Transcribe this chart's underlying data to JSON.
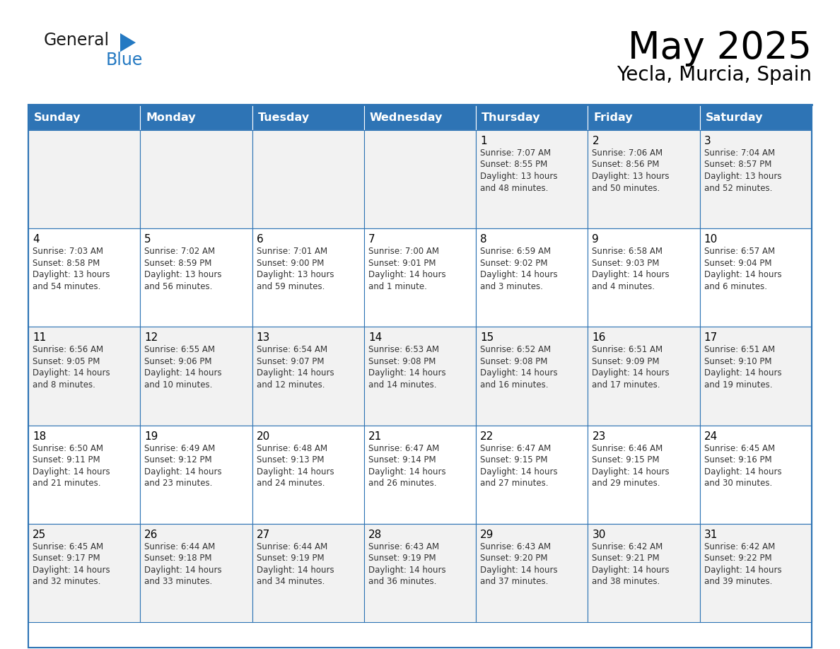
{
  "title": "May 2025",
  "subtitle": "Yecla, Murcia, Spain",
  "header_bg": "#2E74B5",
  "header_text": "#FFFFFF",
  "cell_bg_odd": "#F2F2F2",
  "cell_bg_even": "#FFFFFF",
  "cell_text": "#000000",
  "border_color": "#2E74B5",
  "days_of_week": [
    "Sunday",
    "Monday",
    "Tuesday",
    "Wednesday",
    "Thursday",
    "Friday",
    "Saturday"
  ],
  "calendar_data": [
    [
      {
        "day": "",
        "text": ""
      },
      {
        "day": "",
        "text": ""
      },
      {
        "day": "",
        "text": ""
      },
      {
        "day": "",
        "text": ""
      },
      {
        "day": "1",
        "text": "Sunrise: 7:07 AM\nSunset: 8:55 PM\nDaylight: 13 hours\nand 48 minutes."
      },
      {
        "day": "2",
        "text": "Sunrise: 7:06 AM\nSunset: 8:56 PM\nDaylight: 13 hours\nand 50 minutes."
      },
      {
        "day": "3",
        "text": "Sunrise: 7:04 AM\nSunset: 8:57 PM\nDaylight: 13 hours\nand 52 minutes."
      }
    ],
    [
      {
        "day": "4",
        "text": "Sunrise: 7:03 AM\nSunset: 8:58 PM\nDaylight: 13 hours\nand 54 minutes."
      },
      {
        "day": "5",
        "text": "Sunrise: 7:02 AM\nSunset: 8:59 PM\nDaylight: 13 hours\nand 56 minutes."
      },
      {
        "day": "6",
        "text": "Sunrise: 7:01 AM\nSunset: 9:00 PM\nDaylight: 13 hours\nand 59 minutes."
      },
      {
        "day": "7",
        "text": "Sunrise: 7:00 AM\nSunset: 9:01 PM\nDaylight: 14 hours\nand 1 minute."
      },
      {
        "day": "8",
        "text": "Sunrise: 6:59 AM\nSunset: 9:02 PM\nDaylight: 14 hours\nand 3 minutes."
      },
      {
        "day": "9",
        "text": "Sunrise: 6:58 AM\nSunset: 9:03 PM\nDaylight: 14 hours\nand 4 minutes."
      },
      {
        "day": "10",
        "text": "Sunrise: 6:57 AM\nSunset: 9:04 PM\nDaylight: 14 hours\nand 6 minutes."
      }
    ],
    [
      {
        "day": "11",
        "text": "Sunrise: 6:56 AM\nSunset: 9:05 PM\nDaylight: 14 hours\nand 8 minutes."
      },
      {
        "day": "12",
        "text": "Sunrise: 6:55 AM\nSunset: 9:06 PM\nDaylight: 14 hours\nand 10 minutes."
      },
      {
        "day": "13",
        "text": "Sunrise: 6:54 AM\nSunset: 9:07 PM\nDaylight: 14 hours\nand 12 minutes."
      },
      {
        "day": "14",
        "text": "Sunrise: 6:53 AM\nSunset: 9:08 PM\nDaylight: 14 hours\nand 14 minutes."
      },
      {
        "day": "15",
        "text": "Sunrise: 6:52 AM\nSunset: 9:08 PM\nDaylight: 14 hours\nand 16 minutes."
      },
      {
        "day": "16",
        "text": "Sunrise: 6:51 AM\nSunset: 9:09 PM\nDaylight: 14 hours\nand 17 minutes."
      },
      {
        "day": "17",
        "text": "Sunrise: 6:51 AM\nSunset: 9:10 PM\nDaylight: 14 hours\nand 19 minutes."
      }
    ],
    [
      {
        "day": "18",
        "text": "Sunrise: 6:50 AM\nSunset: 9:11 PM\nDaylight: 14 hours\nand 21 minutes."
      },
      {
        "day": "19",
        "text": "Sunrise: 6:49 AM\nSunset: 9:12 PM\nDaylight: 14 hours\nand 23 minutes."
      },
      {
        "day": "20",
        "text": "Sunrise: 6:48 AM\nSunset: 9:13 PM\nDaylight: 14 hours\nand 24 minutes."
      },
      {
        "day": "21",
        "text": "Sunrise: 6:47 AM\nSunset: 9:14 PM\nDaylight: 14 hours\nand 26 minutes."
      },
      {
        "day": "22",
        "text": "Sunrise: 6:47 AM\nSunset: 9:15 PM\nDaylight: 14 hours\nand 27 minutes."
      },
      {
        "day": "23",
        "text": "Sunrise: 6:46 AM\nSunset: 9:15 PM\nDaylight: 14 hours\nand 29 minutes."
      },
      {
        "day": "24",
        "text": "Sunrise: 6:45 AM\nSunset: 9:16 PM\nDaylight: 14 hours\nand 30 minutes."
      }
    ],
    [
      {
        "day": "25",
        "text": "Sunrise: 6:45 AM\nSunset: 9:17 PM\nDaylight: 14 hours\nand 32 minutes."
      },
      {
        "day": "26",
        "text": "Sunrise: 6:44 AM\nSunset: 9:18 PM\nDaylight: 14 hours\nand 33 minutes."
      },
      {
        "day": "27",
        "text": "Sunrise: 6:44 AM\nSunset: 9:19 PM\nDaylight: 14 hours\nand 34 minutes."
      },
      {
        "day": "28",
        "text": "Sunrise: 6:43 AM\nSunset: 9:19 PM\nDaylight: 14 hours\nand 36 minutes."
      },
      {
        "day": "29",
        "text": "Sunrise: 6:43 AM\nSunset: 9:20 PM\nDaylight: 14 hours\nand 37 minutes."
      },
      {
        "day": "30",
        "text": "Sunrise: 6:42 AM\nSunset: 9:21 PM\nDaylight: 14 hours\nand 38 minutes."
      },
      {
        "day": "31",
        "text": "Sunrise: 6:42 AM\nSunset: 9:22 PM\nDaylight: 14 hours\nand 39 minutes."
      }
    ]
  ],
  "logo_general_color": "#1a1a1a",
  "logo_blue_color": "#2479C2",
  "logo_triangle_color": "#2479C2"
}
